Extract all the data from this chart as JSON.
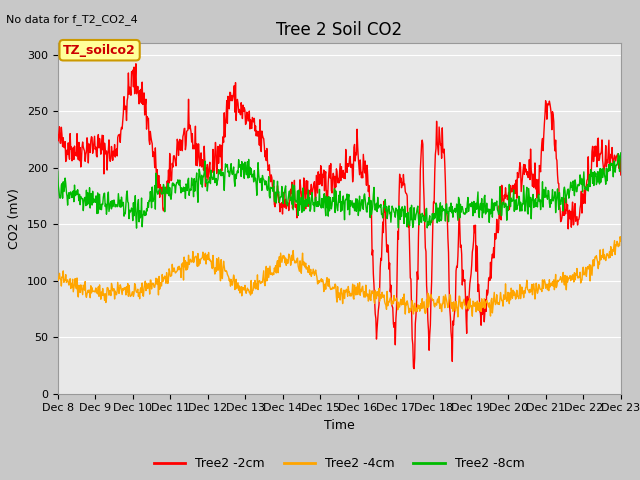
{
  "title": "Tree 2 Soil CO2",
  "no_data_text": "No data for f_T2_CO2_4",
  "xlabel": "Time",
  "ylabel": "CO2 (mV)",
  "ylim": [
    0,
    310
  ],
  "yticks": [
    0,
    50,
    100,
    150,
    200,
    250,
    300
  ],
  "xlim": [
    0,
    15
  ],
  "xtick_labels": [
    "Dec 8",
    "Dec 9",
    "Dec 10",
    "Dec 11",
    "Dec 12",
    "Dec 13",
    "Dec 14",
    "Dec 15",
    "Dec 16",
    "Dec 17",
    "Dec 18",
    "Dec 19",
    "Dec 20",
    "Dec 21",
    "Dec 22",
    "Dec 23"
  ],
  "legend_labels": [
    "Tree2 -2cm",
    "Tree2 -4cm",
    "Tree2 -8cm"
  ],
  "legend_colors": [
    "#ff0000",
    "#ffa500",
    "#00bb00"
  ],
  "box_label": "TZ_soilco2",
  "box_color": "#ffff99",
  "box_edge_color": "#cc9900",
  "fig_bg_color": "#c8c8c8",
  "plot_bg_color": "#e8e8e8",
  "grid_color": "#ffffff",
  "title_fontsize": 12,
  "label_fontsize": 9,
  "tick_fontsize": 8,
  "legend_fontsize": 9,
  "nodata_fontsize": 8,
  "line_width": 1.0
}
